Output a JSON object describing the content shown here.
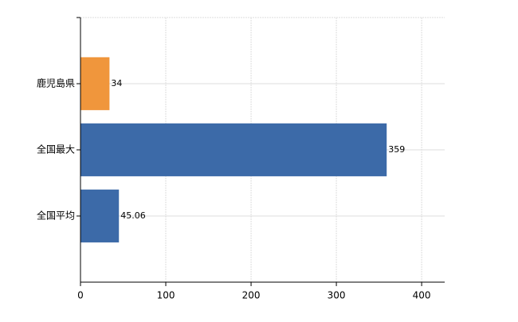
{
  "chart_data": {
    "type": "barh",
    "categories": [
      "鹿児島県",
      "全国最大",
      "全国平均"
    ],
    "values": [
      34,
      359,
      45.06
    ],
    "colors": [
      "#f0963c",
      "#3c6aa8",
      "#3c6aa8"
    ],
    "xlim": [
      0,
      427
    ],
    "xticks": [
      0,
      100,
      200,
      300,
      400
    ],
    "grid": true
  }
}
